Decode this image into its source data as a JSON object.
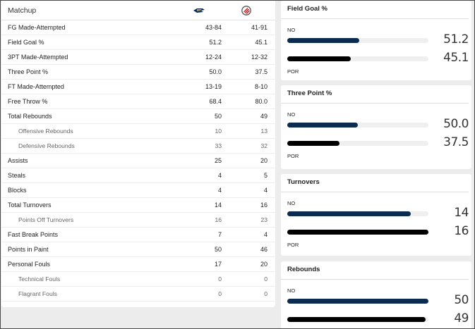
{
  "table": {
    "header": {
      "label": "Matchup",
      "home_logo_icon": "pelicans-logo-icon",
      "away_logo_icon": "trail-blazers-logo-icon"
    },
    "rows": [
      {
        "label": "FG Made-Attempted",
        "home": "43-84",
        "away": "41-91",
        "sub": false
      },
      {
        "label": "Field Goal %",
        "home": "51.2",
        "away": "45.1",
        "sub": false
      },
      {
        "label": "3PT Made-Attempted",
        "home": "12-24",
        "away": "12-32",
        "sub": false
      },
      {
        "label": "Three Point %",
        "home": "50.0",
        "away": "37.5",
        "sub": false
      },
      {
        "label": "FT Made-Attempted",
        "home": "13-19",
        "away": "8-10",
        "sub": false
      },
      {
        "label": "Free Throw %",
        "home": "68.4",
        "away": "80.0",
        "sub": false
      },
      {
        "label": "Total Rebounds",
        "home": "50",
        "away": "49",
        "sub": false
      },
      {
        "label": "Offensive Rebounds",
        "home": "10",
        "away": "13",
        "sub": true
      },
      {
        "label": "Defensive Rebounds",
        "home": "33",
        "away": "32",
        "sub": true
      },
      {
        "label": "Assists",
        "home": "25",
        "away": "20",
        "sub": false
      },
      {
        "label": "Steals",
        "home": "4",
        "away": "5",
        "sub": false
      },
      {
        "label": "Blocks",
        "home": "4",
        "away": "4",
        "sub": false
      },
      {
        "label": "Total Turnovers",
        "home": "14",
        "away": "16",
        "sub": false
      },
      {
        "label": "Points Off Turnovers",
        "home": "16",
        "away": "23",
        "sub": true
      },
      {
        "label": "Fast Break Points",
        "home": "7",
        "away": "4",
        "sub": false
      },
      {
        "label": "Points in Paint",
        "home": "50",
        "away": "46",
        "sub": false
      },
      {
        "label": "Personal Fouls",
        "home": "17",
        "away": "20",
        "sub": false
      },
      {
        "label": "Technical Fouls",
        "home": "0",
        "away": "0",
        "sub": true
      },
      {
        "label": "Flagrant Fouls",
        "home": "0",
        "away": "0",
        "sub": true
      }
    ]
  },
  "comparisons": [
    {
      "title": "Field Goal %",
      "home_team": "NO",
      "away_team": "POR",
      "home_value": "51.2",
      "away_value": "45.1",
      "home_fraction": 0.51,
      "away_fraction": 0.45
    },
    {
      "title": "Three Point %",
      "home_team": "NO",
      "away_team": "POR",
      "home_value": "50.0",
      "away_value": "37.5",
      "home_fraction": 0.5,
      "away_fraction": 0.37
    },
    {
      "title": "Turnovers",
      "home_team": "NO",
      "away_team": "POR",
      "home_value": "14",
      "away_value": "16",
      "home_fraction": 0.875,
      "away_fraction": 1.0
    },
    {
      "title": "Rebounds",
      "home_team": "NO",
      "away_team": "POR",
      "home_value": "50",
      "away_value": "49",
      "home_fraction": 1.0,
      "away_fraction": 0.98
    }
  ],
  "colors": {
    "home_bar": "#0c2b51",
    "away_bar": "#000000",
    "track": "#efefef"
  }
}
